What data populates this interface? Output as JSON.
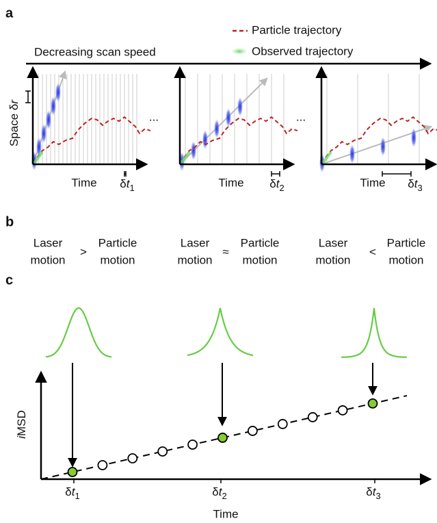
{
  "panel_a": {
    "label": "a",
    "legend": [
      "Particle trajectory",
      "Observed trajectory"
    ],
    "arrow_label": "Decreasing scan speed",
    "y_axis": {
      "text": "Space δ",
      "var": "r"
    },
    "x_axes": [
      "Time",
      "Time",
      "Time"
    ],
    "intervals": [
      {
        "symbol": "δ",
        "var": "t",
        "sub": "1"
      },
      {
        "symbol": "δ",
        "var": "t",
        "sub": "2"
      },
      {
        "symbol": "δ",
        "var": "t",
        "sub": "3"
      }
    ],
    "ellipses": [
      "...",
      "..."
    ]
  },
  "panel_b": {
    "label": "b",
    "comparisons": [
      {
        "left": [
          "Laser",
          "motion"
        ],
        "sign": ">",
        "right": [
          "Particle",
          "motion"
        ]
      },
      {
        "left": [
          "Laser",
          "motion"
        ],
        "sign": "≈",
        "right": [
          "Particle",
          "motion"
        ]
      },
      {
        "left": [
          "Laser",
          "motion"
        ],
        "sign": "<",
        "right": [
          "Particle",
          "motion"
        ]
      }
    ]
  },
  "panel_c": {
    "label": "c",
    "y_axis": {
      "prefix": "i",
      "rest": "MSD"
    },
    "x_ticks": [
      {
        "symbol": "δ",
        "var": "t",
        "sub": "1"
      },
      {
        "symbol": "δ",
        "var": "t",
        "sub": "2"
      },
      {
        "symbol": "δ",
        "var": "t",
        "sub": "3"
      }
    ],
    "x_axis": "Time"
  }
}
